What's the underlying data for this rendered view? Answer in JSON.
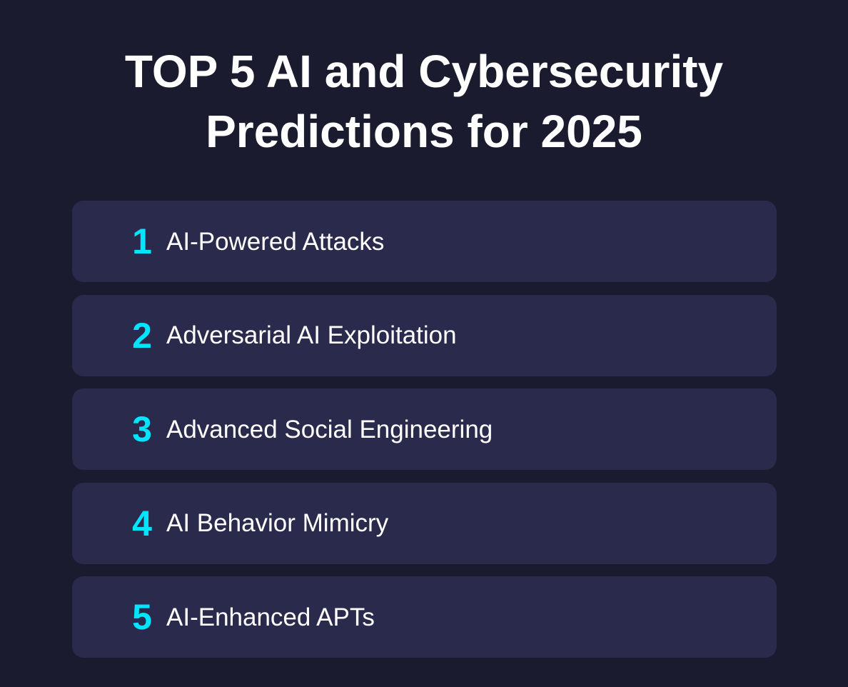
{
  "title": {
    "line1": "TOP 5 AI and Cybersecurity",
    "line2": "Predictions for 2025"
  },
  "colors": {
    "background": "#1b1b2f",
    "card": "#2a2a4c",
    "accent": "#00e5ff",
    "text": "#ffffff"
  },
  "predictions": [
    {
      "number": "1",
      "label": "AI-Powered Attacks"
    },
    {
      "number": "2",
      "label": "Adversarial AI Exploitation"
    },
    {
      "number": "3",
      "label": "Advanced Social Engineering"
    },
    {
      "number": "4",
      "label": "AI Behavior Mimicry"
    },
    {
      "number": "5",
      "label": "AI-Enhanced APTs"
    }
  ]
}
